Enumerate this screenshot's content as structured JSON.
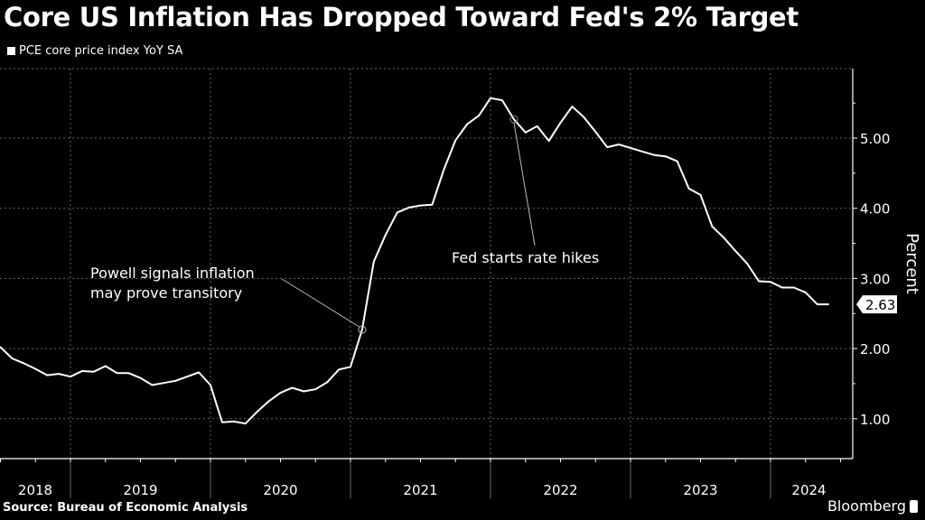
{
  "chart_data": {
    "type": "line",
    "title": "Core US Inflation Has Dropped Toward Fed's 2% Target",
    "legend": [
      "PCE core price index YoY SA"
    ],
    "legend_placement": "top-left",
    "xlabel": "",
    "ylabel": "Percent",
    "ylim": [
      0.5,
      5.9
    ],
    "yticks": [
      1.0,
      2.0,
      3.0,
      4.0,
      5.0
    ],
    "ytick_labels": [
      "1.00",
      "2.00",
      "3.00",
      "4.00",
      "5.00"
    ],
    "xtick_labels": [
      "2018",
      "2019",
      "2020",
      "2021",
      "2022",
      "2023",
      "2024"
    ],
    "grid": true,
    "x_start": "2018-01",
    "x_end": "2024-04",
    "series": [
      {
        "name": "PCE core price index YoY SA",
        "x_months": "monthly from 2018-01",
        "values": [
          1.94,
          1.99,
          1.91,
          1.96,
          1.88,
          1.99,
          2.02,
          1.86,
          1.79,
          1.71,
          1.62,
          1.64,
          1.6,
          1.68,
          1.67,
          1.75,
          1.65,
          1.65,
          1.58,
          1.48,
          1.51,
          1.54,
          1.6,
          1.66,
          1.48,
          0.95,
          0.96,
          0.93,
          1.1,
          1.25,
          1.37,
          1.44,
          1.39,
          1.42,
          1.52,
          1.7,
          1.74,
          2.27,
          3.24,
          3.62,
          3.94,
          4.01,
          4.04,
          4.05,
          4.55,
          4.97,
          5.2,
          5.32,
          5.57,
          5.54,
          5.27,
          5.08,
          5.17,
          4.96,
          5.22,
          5.45,
          5.3,
          5.09,
          4.87,
          4.91,
          4.86,
          4.81,
          4.76,
          4.74,
          4.67,
          4.28,
          4.19,
          3.74,
          3.58,
          3.39,
          3.21,
          2.96,
          2.95,
          2.87,
          2.87,
          2.8,
          2.63,
          2.63
        ]
      }
    ],
    "last_value_label": "2.63",
    "annotations": [
      {
        "text_lines": [
          "Powell signals inflation",
          "may prove transitory"
        ],
        "point_index": 37
      },
      {
        "text_lines": [
          "Fed starts rate hikes"
        ],
        "point_index": 50
      }
    ]
  },
  "footer": {
    "source": "Source: Bureau of Economic Analysis",
    "brand": "Bloomberg"
  }
}
